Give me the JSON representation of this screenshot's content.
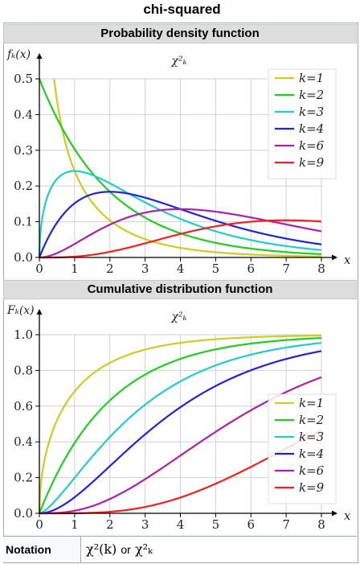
{
  "infobox": {
    "title": "chi-squared",
    "pdf_header": "Probability density function",
    "cdf_header": "Cumulative distribution function",
    "notation_label": "Notation",
    "notation_value_1": "χ²(k)",
    "notation_or": "or",
    "notation_value_2": "χ²ₖ"
  },
  "chart_data": [
    {
      "type": "line",
      "title": "χ²ₖ",
      "ylabel": "fₖ(x)",
      "xlabel": "x",
      "xlim": [
        0,
        8
      ],
      "ylim": [
        0,
        0.5
      ],
      "xticks": [
        "0",
        "1",
        "2",
        "3",
        "4",
        "5",
        "6",
        "7",
        "8"
      ],
      "yticks": [
        "0.0",
        "0.1",
        "0.2",
        "0.3",
        "0.4",
        "0.5"
      ],
      "legend": "top-right",
      "grid": true,
      "series": [
        {
          "name": "k=1",
          "color": "#cccc22",
          "k": 1
        },
        {
          "name": "k=2",
          "color": "#22cc22",
          "k": 2
        },
        {
          "name": "k=3",
          "color": "#22cccc",
          "k": 3
        },
        {
          "name": "k=4",
          "color": "#2222dd",
          "k": 4
        },
        {
          "name": "k=6",
          "color": "#aa22aa",
          "k": 6
        },
        {
          "name": "k=9",
          "color": "#ee2222",
          "k": 9
        }
      ]
    },
    {
      "type": "line",
      "title": "χ²ₖ",
      "ylabel": "Fₖ(x)",
      "xlabel": "x",
      "xlim": [
        0,
        8
      ],
      "ylim": [
        0,
        1.0
      ],
      "xticks": [
        "0",
        "1",
        "2",
        "3",
        "4",
        "5",
        "6",
        "7",
        "8"
      ],
      "yticks": [
        "0.0",
        "0.2",
        "0.4",
        "0.6",
        "0.8",
        "1.0"
      ],
      "legend": "center-right",
      "grid": true,
      "series": [
        {
          "name": "k=1",
          "color": "#cccc22",
          "k": 1
        },
        {
          "name": "k=2",
          "color": "#22cc22",
          "k": 2
        },
        {
          "name": "k=3",
          "color": "#22cccc",
          "k": 3
        },
        {
          "name": "k=4",
          "color": "#2222dd",
          "k": 4
        },
        {
          "name": "k=6",
          "color": "#aa22aa",
          "k": 6
        },
        {
          "name": "k=9",
          "color": "#ee2222",
          "k": 9
        }
      ]
    }
  ]
}
